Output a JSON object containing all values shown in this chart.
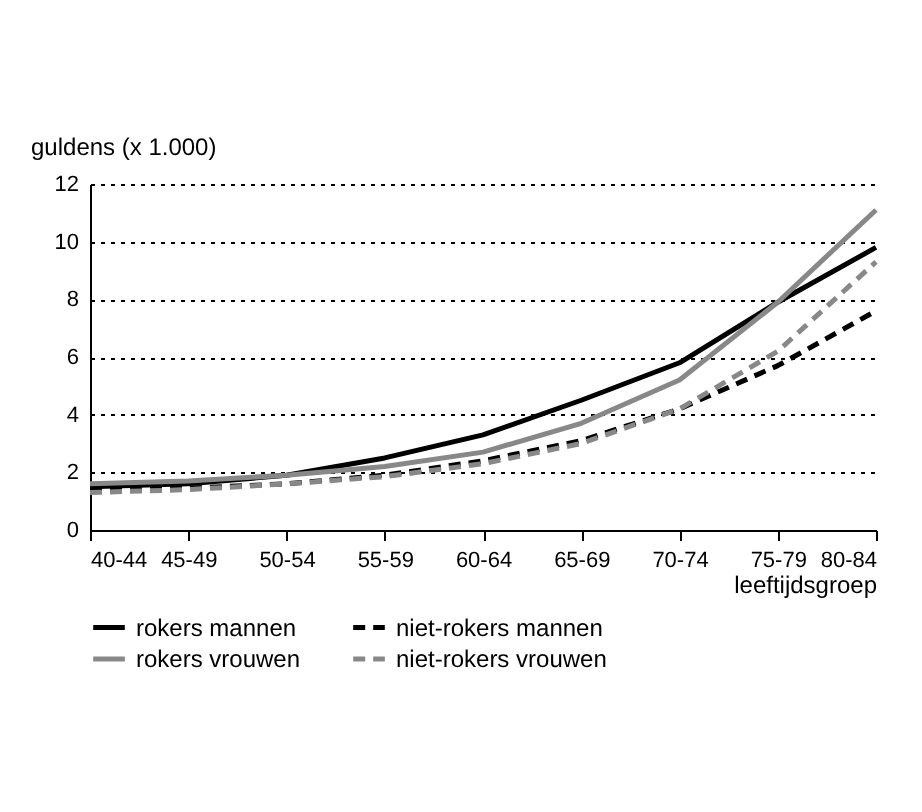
{
  "chart_data": {
    "type": "line",
    "ylabel": "guldens (x 1.000)",
    "xlabel": "leeftijdsgroep",
    "categories": [
      "40-44",
      "45-49",
      "50-54",
      "55-59",
      "60-64",
      "65-69",
      "70-74",
      "75-79",
      "80-84"
    ],
    "series": [
      {
        "name": "rokers mannen",
        "color": "#000000",
        "line_style": "solid",
        "values": [
          1.5,
          1.6,
          1.9,
          2.5,
          3.3,
          4.5,
          5.8,
          7.9,
          9.8
        ]
      },
      {
        "name": "rokers vrouwen",
        "color": "#888888",
        "line_style": "solid",
        "values": [
          1.6,
          1.7,
          1.9,
          2.2,
          2.7,
          3.7,
          5.2,
          7.9,
          11.1
        ]
      },
      {
        "name": "niet-rokers mannen",
        "color": "#000000",
        "line_style": "dashed",
        "values": [
          1.4,
          1.45,
          1.6,
          1.9,
          2.4,
          3.1,
          4.2,
          5.7,
          7.6
        ]
      },
      {
        "name": "niet-rokers vrouwen",
        "color": "#888888",
        "line_style": "dashed",
        "values": [
          1.3,
          1.4,
          1.6,
          1.85,
          2.3,
          3.0,
          4.2,
          6.2,
          9.3
        ]
      }
    ],
    "ylim": [
      0,
      12
    ],
    "yticks": [
      0,
      2,
      4,
      6,
      8,
      10,
      12
    ],
    "grid": "y",
    "legend": "bottom",
    "marker": "none"
  }
}
